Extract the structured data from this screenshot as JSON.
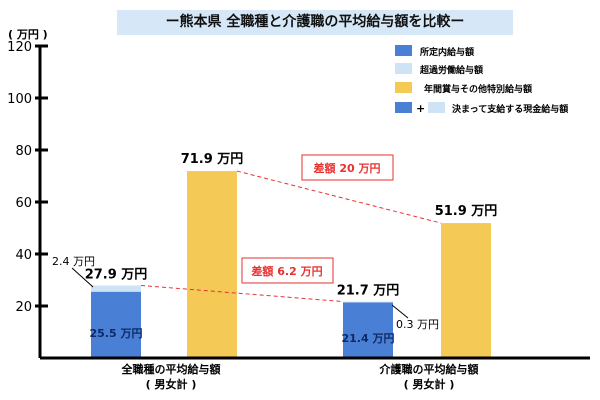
{
  "chart_data": {
    "type": "bar",
    "title": "ー熊本県 全職種と介護職の平均給与額を比較ー",
    "ylabel": "( 万円 )",
    "ylim": [
      0,
      120
    ],
    "yticks": [
      20,
      40,
      60,
      80,
      100,
      120
    ],
    "grid": false,
    "legend_position": "top-right",
    "categories": [
      {
        "line1": "全職種の平均給与額",
        "line2": "( 男女計 )"
      },
      {
        "line1": "介護職の平均給与額",
        "line2": "( 男女計 )"
      }
    ],
    "series": [
      {
        "name": "所定内給与額",
        "color": "#4a7fd6",
        "values": [
          25.5,
          21.4
        ],
        "labels": [
          "25.5 万円",
          "21.4 万円"
        ]
      },
      {
        "name": "超過労働給与額",
        "color": "#cfe3f7",
        "values": [
          2.4,
          0.3
        ],
        "labels": [
          "2.4 万円",
          "0.3 万円"
        ]
      },
      {
        "name": "年間賞与その他特別給与額",
        "color": "#f5c955",
        "values": [
          71.9,
          51.9
        ],
        "labels": [
          "71.9 万円",
          "51.9 万円"
        ]
      }
    ],
    "stack_totals": [
      "27.9 万円",
      "21.7 万円"
    ],
    "legend_combined": {
      "plus": "+",
      "label": "決まって支給する現金給与額"
    },
    "annotations": [
      {
        "text": "差額 20 万円",
        "color": "#e8322f"
      },
      {
        "text": "差額 6.2 万円",
        "color": "#e8322f"
      }
    ]
  }
}
